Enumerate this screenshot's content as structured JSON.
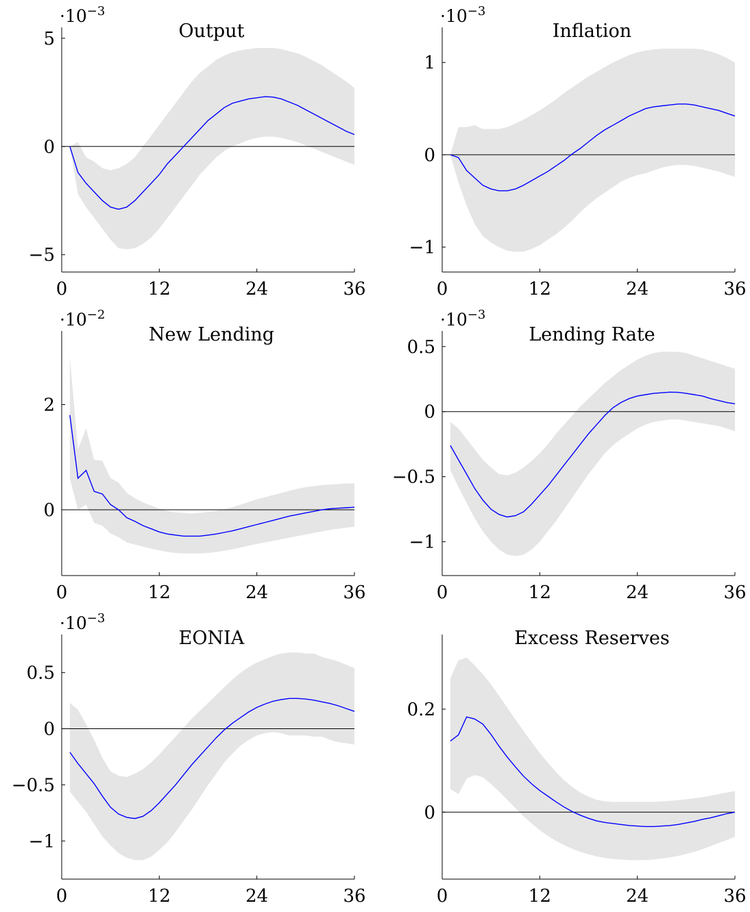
{
  "figure": {
    "panel_order": [
      "output",
      "inflation",
      "new_lending",
      "lending_rate",
      "eonia",
      "excess_reserves"
    ]
  },
  "chart_data": [
    {
      "id": "output",
      "type": "line",
      "title": "Output",
      "scale_label": {
        "base": "·10",
        "exp": "−3"
      },
      "xlim": [
        0,
        36
      ],
      "ylim": [
        -5.8,
        5.5
      ],
      "x_ticks": [
        0,
        12,
        24,
        36
      ],
      "x_tick_labels": [
        "0",
        "12",
        "24",
        "36"
      ],
      "y_ticks": [
        -5,
        0,
        5
      ],
      "y_tick_labels": [
        "−5",
        "0",
        "5"
      ],
      "zero_line": true,
      "band_color": "#e5e5e5",
      "line_color": "#0000ff",
      "x": [
        1,
        2,
        3,
        4,
        5,
        6,
        7,
        8,
        9,
        10,
        11,
        12,
        13,
        14,
        15,
        16,
        17,
        18,
        19,
        20,
        21,
        22,
        23,
        24,
        25,
        26,
        27,
        28,
        29,
        30,
        31,
        32,
        33,
        34,
        35,
        36
      ],
      "median": [
        0,
        -1.2,
        -1.7,
        -2.1,
        -2.5,
        -2.8,
        -2.9,
        -2.8,
        -2.5,
        -2.1,
        -1.7,
        -1.3,
        -0.8,
        -0.4,
        0,
        0.4,
        0.8,
        1.2,
        1.5,
        1.8,
        2.0,
        2.1,
        2.2,
        2.25,
        2.3,
        2.28,
        2.2,
        2.05,
        1.9,
        1.7,
        1.5,
        1.3,
        1.1,
        0.9,
        0.7,
        0.55
      ],
      "upper": [
        0,
        0.2,
        -0.5,
        -0.7,
        -1.0,
        -1.1,
        -1.0,
        -0.8,
        -0.5,
        0,
        0.5,
        1.0,
        1.5,
        2.0,
        2.5,
        3.0,
        3.4,
        3.7,
        4.0,
        4.2,
        4.35,
        4.45,
        4.5,
        4.55,
        4.55,
        4.55,
        4.5,
        4.4,
        4.3,
        4.15,
        3.95,
        3.75,
        3.5,
        3.25,
        3.0,
        2.7
      ],
      "lower": [
        0,
        -2.2,
        -2.8,
        -3.3,
        -3.8,
        -4.3,
        -4.7,
        -4.75,
        -4.7,
        -4.5,
        -4.2,
        -3.8,
        -3.3,
        -2.8,
        -2.3,
        -1.8,
        -1.3,
        -0.9,
        -0.5,
        -0.2,
        0,
        0.15,
        0.3,
        0.4,
        0.45,
        0.45,
        0.4,
        0.3,
        0.2,
        0.05,
        -0.1,
        -0.25,
        -0.4,
        -0.55,
        -0.7,
        -0.85
      ]
    },
    {
      "id": "inflation",
      "type": "line",
      "title": "Inflation",
      "scale_label": {
        "base": "·10",
        "exp": "−3"
      },
      "xlim": [
        0,
        36
      ],
      "ylim": [
        -1.27,
        1.38
      ],
      "x_ticks": [
        0,
        12,
        24,
        36
      ],
      "x_tick_labels": [
        "0",
        "12",
        "24",
        "36"
      ],
      "y_ticks": [
        -1,
        0,
        1
      ],
      "y_tick_labels": [
        "−1",
        "0",
        "1"
      ],
      "zero_line": true,
      "band_color": "#e5e5e5",
      "line_color": "#0000ff",
      "x": [
        1,
        2,
        3,
        4,
        5,
        6,
        7,
        8,
        9,
        10,
        11,
        12,
        13,
        14,
        15,
        16,
        17,
        18,
        19,
        20,
        21,
        22,
        23,
        24,
        25,
        26,
        27,
        28,
        29,
        30,
        31,
        32,
        33,
        34,
        35,
        36
      ],
      "median": [
        0,
        -0.03,
        -0.17,
        -0.25,
        -0.33,
        -0.37,
        -0.39,
        -0.39,
        -0.37,
        -0.33,
        -0.28,
        -0.23,
        -0.18,
        -0.12,
        -0.06,
        0.01,
        0.07,
        0.14,
        0.21,
        0.27,
        0.32,
        0.37,
        0.42,
        0.46,
        0.5,
        0.52,
        0.53,
        0.54,
        0.55,
        0.55,
        0.54,
        0.52,
        0.5,
        0.48,
        0.45,
        0.42
      ],
      "upper": [
        0,
        0.3,
        0.3,
        0.32,
        0.28,
        0.28,
        0.28,
        0.3,
        0.34,
        0.38,
        0.43,
        0.48,
        0.54,
        0.6,
        0.67,
        0.73,
        0.79,
        0.85,
        0.9,
        0.95,
        1.0,
        1.04,
        1.08,
        1.11,
        1.13,
        1.14,
        1.15,
        1.15,
        1.15,
        1.15,
        1.15,
        1.14,
        1.12,
        1.09,
        1.05,
        1.0
      ],
      "lower": [
        0,
        -0.3,
        -0.55,
        -0.75,
        -0.88,
        -0.95,
        -1.0,
        -1.04,
        -1.05,
        -1.05,
        -1.02,
        -0.98,
        -0.92,
        -0.86,
        -0.79,
        -0.71,
        -0.62,
        -0.54,
        -0.47,
        -0.41,
        -0.35,
        -0.29,
        -0.25,
        -0.22,
        -0.2,
        -0.17,
        -0.14,
        -0.12,
        -0.11,
        -0.11,
        -0.12,
        -0.14,
        -0.16,
        -0.18,
        -0.21,
        -0.24
      ]
    },
    {
      "id": "new_lending",
      "type": "line",
      "title": "New Lending",
      "scale_label": {
        "base": "·10",
        "exp": "−2"
      },
      "xlim": [
        0,
        36
      ],
      "ylim": [
        -1.25,
        3.4
      ],
      "x_ticks": [
        0,
        12,
        24,
        36
      ],
      "x_tick_labels": [
        "0",
        "12",
        "24",
        "36"
      ],
      "y_ticks": [
        0,
        2
      ],
      "y_tick_labels": [
        "0",
        "2"
      ],
      "zero_line": true,
      "band_color": "#e5e5e5",
      "line_color": "#0000ff",
      "x": [
        1,
        2,
        3,
        4,
        5,
        6,
        7,
        8,
        9,
        10,
        11,
        12,
        13,
        14,
        15,
        16,
        17,
        18,
        19,
        20,
        21,
        22,
        23,
        24,
        25,
        26,
        27,
        28,
        29,
        30,
        31,
        32,
        33,
        34,
        35,
        36
      ],
      "median": [
        1.8,
        0.6,
        0.75,
        0.35,
        0.3,
        0.1,
        0.0,
        -0.15,
        -0.22,
        -0.3,
        -0.36,
        -0.42,
        -0.46,
        -0.48,
        -0.5,
        -0.5,
        -0.5,
        -0.48,
        -0.46,
        -0.43,
        -0.4,
        -0.36,
        -0.32,
        -0.28,
        -0.24,
        -0.2,
        -0.16,
        -0.12,
        -0.09,
        -0.06,
        -0.03,
        0.0,
        0.02,
        0.03,
        0.04,
        0.05
      ],
      "upper": [
        2.9,
        1.15,
        1.55,
        0.95,
        0.93,
        0.6,
        0.52,
        0.32,
        0.22,
        0.14,
        0.08,
        0.02,
        -0.02,
        -0.05,
        -0.06,
        -0.07,
        -0.06,
        -0.04,
        -0.02,
        0.01,
        0.05,
        0.1,
        0.15,
        0.2,
        0.24,
        0.28,
        0.32,
        0.36,
        0.4,
        0.43,
        0.45,
        0.47,
        0.48,
        0.49,
        0.5,
        0.5
      ],
      "lower": [
        0.6,
        0.0,
        0.1,
        -0.25,
        -0.3,
        -0.45,
        -0.52,
        -0.62,
        -0.66,
        -0.7,
        -0.74,
        -0.77,
        -0.8,
        -0.82,
        -0.83,
        -0.83,
        -0.83,
        -0.82,
        -0.8,
        -0.78,
        -0.75,
        -0.72,
        -0.68,
        -0.65,
        -0.62,
        -0.59,
        -0.56,
        -0.53,
        -0.5,
        -0.47,
        -0.44,
        -0.41,
        -0.38,
        -0.36,
        -0.34,
        -0.32
      ]
    },
    {
      "id": "lending_rate",
      "type": "line",
      "title": "Lending Rate",
      "scale_label": {
        "base": "·10",
        "exp": "−3"
      },
      "xlim": [
        0,
        36
      ],
      "ylim": [
        -1.26,
        0.62
      ],
      "x_ticks": [
        0,
        12,
        24,
        36
      ],
      "x_tick_labels": [
        "0",
        "12",
        "24",
        "36"
      ],
      "y_ticks": [
        -1,
        -0.5,
        0,
        0.5
      ],
      "y_tick_labels": [
        "−1",
        "−0.5",
        "0",
        "0.5"
      ],
      "zero_line": true,
      "band_color": "#e5e5e5",
      "line_color": "#0000ff",
      "x": [
        1,
        2,
        3,
        4,
        5,
        6,
        7,
        8,
        9,
        10,
        11,
        12,
        13,
        14,
        15,
        16,
        17,
        18,
        19,
        20,
        21,
        22,
        23,
        24,
        25,
        26,
        27,
        28,
        29,
        30,
        31,
        32,
        33,
        34,
        35,
        36
      ],
      "median": [
        -0.26,
        -0.37,
        -0.48,
        -0.59,
        -0.68,
        -0.75,
        -0.79,
        -0.81,
        -0.8,
        -0.77,
        -0.71,
        -0.64,
        -0.57,
        -0.49,
        -0.41,
        -0.33,
        -0.25,
        -0.17,
        -0.1,
        -0.03,
        0.03,
        0.07,
        0.1,
        0.12,
        0.13,
        0.14,
        0.145,
        0.15,
        0.148,
        0.14,
        0.13,
        0.12,
        0.1,
        0.085,
        0.07,
        0.06
      ],
      "upper": [
        -0.08,
        -0.13,
        -0.21,
        -0.29,
        -0.37,
        -0.43,
        -0.48,
        -0.49,
        -0.47,
        -0.43,
        -0.38,
        -0.32,
        -0.25,
        -0.17,
        -0.1,
        -0.03,
        0.04,
        0.1,
        0.16,
        0.22,
        0.27,
        0.32,
        0.36,
        0.4,
        0.43,
        0.45,
        0.46,
        0.46,
        0.46,
        0.45,
        0.43,
        0.41,
        0.39,
        0.37,
        0.35,
        0.33
      ],
      "lower": [
        -0.45,
        -0.58,
        -0.7,
        -0.82,
        -0.92,
        -1.0,
        -1.06,
        -1.1,
        -1.11,
        -1.1,
        -1.06,
        -1.0,
        -0.92,
        -0.84,
        -0.75,
        -0.66,
        -0.57,
        -0.48,
        -0.4,
        -0.32,
        -0.26,
        -0.21,
        -0.17,
        -0.13,
        -0.1,
        -0.08,
        -0.07,
        -0.06,
        -0.06,
        -0.07,
        -0.08,
        -0.09,
        -0.1,
        -0.11,
        -0.13,
        -0.15
      ]
    },
    {
      "id": "eonia",
      "type": "line",
      "title": "EONIA",
      "scale_label": {
        "base": "·10",
        "exp": "−3"
      },
      "xlim": [
        0,
        36
      ],
      "ylim": [
        -1.34,
        0.84
      ],
      "x_ticks": [
        0,
        12,
        24,
        36
      ],
      "x_tick_labels": [
        "0",
        "12",
        "24",
        "36"
      ],
      "y_ticks": [
        -1,
        -0.5,
        0,
        0.5
      ],
      "y_tick_labels": [
        "−1",
        "−0.5",
        "0",
        "0.5"
      ],
      "zero_line": true,
      "band_color": "#e5e5e5",
      "line_color": "#0000ff",
      "x": [
        1,
        2,
        3,
        4,
        5,
        6,
        7,
        8,
        9,
        10,
        11,
        12,
        13,
        14,
        15,
        16,
        17,
        18,
        19,
        20,
        21,
        22,
        23,
        24,
        25,
        26,
        27,
        28,
        29,
        30,
        31,
        32,
        33,
        34,
        35,
        36
      ],
      "median": [
        -0.21,
        -0.31,
        -0.4,
        -0.49,
        -0.6,
        -0.7,
        -0.76,
        -0.79,
        -0.8,
        -0.78,
        -0.73,
        -0.66,
        -0.58,
        -0.5,
        -0.41,
        -0.32,
        -0.24,
        -0.16,
        -0.08,
        -0.01,
        0.05,
        0.1,
        0.15,
        0.19,
        0.22,
        0.245,
        0.26,
        0.27,
        0.27,
        0.265,
        0.255,
        0.24,
        0.225,
        0.205,
        0.18,
        0.155
      ],
      "upper": [
        0.23,
        0.17,
        0.04,
        -0.1,
        -0.26,
        -0.38,
        -0.42,
        -0.43,
        -0.4,
        -0.36,
        -0.3,
        -0.23,
        -0.15,
        -0.07,
        0.01,
        0.09,
        0.16,
        0.23,
        0.3,
        0.37,
        0.44,
        0.5,
        0.55,
        0.59,
        0.62,
        0.65,
        0.67,
        0.68,
        0.68,
        0.67,
        0.67,
        0.64,
        0.62,
        0.6,
        0.57,
        0.54
      ],
      "lower": [
        -0.56,
        -0.65,
        -0.74,
        -0.85,
        -0.96,
        -1.04,
        -1.11,
        -1.15,
        -1.17,
        -1.17,
        -1.14,
        -1.08,
        -1.01,
        -0.92,
        -0.82,
        -0.72,
        -0.61,
        -0.5,
        -0.4,
        -0.3,
        -0.22,
        -0.15,
        -0.1,
        -0.06,
        -0.04,
        -0.03,
        -0.04,
        -0.06,
        -0.06,
        -0.06,
        -0.07,
        -0.07,
        -0.1,
        -0.12,
        -0.13,
        -0.14
      ]
    },
    {
      "id": "excess_reserves",
      "type": "line",
      "title": "Excess Reserves",
      "scale_label": {
        "base": "",
        "exp": ""
      },
      "xlim": [
        0,
        36
      ],
      "ylim": [
        -0.13,
        0.345
      ],
      "x_ticks": [
        0,
        12,
        24,
        36
      ],
      "x_tick_labels": [
        "0",
        "12",
        "24",
        "36"
      ],
      "y_ticks": [
        0,
        0.2
      ],
      "y_tick_labels": [
        "0",
        "0.2"
      ],
      "zero_line": true,
      "band_color": "#e5e5e5",
      "line_color": "#0000ff",
      "x": [
        1,
        2,
        3,
        4,
        5,
        6,
        7,
        8,
        9,
        10,
        11,
        12,
        13,
        14,
        15,
        16,
        17,
        18,
        19,
        20,
        21,
        22,
        23,
        24,
        25,
        26,
        27,
        28,
        29,
        30,
        31,
        32,
        33,
        34,
        35,
        36
      ],
      "median": [
        0.138,
        0.15,
        0.185,
        0.181,
        0.171,
        0.151,
        0.128,
        0.107,
        0.088,
        0.07,
        0.055,
        0.042,
        0.031,
        0.02,
        0.01,
        0.001,
        -0.006,
        -0.012,
        -0.017,
        -0.02,
        -0.022,
        -0.024,
        -0.026,
        -0.027,
        -0.028,
        -0.028,
        -0.027,
        -0.026,
        -0.024,
        -0.021,
        -0.018,
        -0.014,
        -0.011,
        -0.007,
        -0.003,
        0.0
      ],
      "upper": [
        0.26,
        0.295,
        0.3,
        0.285,
        0.268,
        0.248,
        0.226,
        0.203,
        0.18,
        0.158,
        0.136,
        0.115,
        0.096,
        0.078,
        0.062,
        0.049,
        0.038,
        0.03,
        0.024,
        0.021,
        0.02,
        0.02,
        0.02,
        0.02,
        0.02,
        0.02,
        0.021,
        0.022,
        0.023,
        0.025,
        0.027,
        0.029,
        0.032,
        0.035,
        0.038,
        0.041
      ],
      "lower": [
        0.045,
        0.035,
        0.065,
        0.072,
        0.068,
        0.055,
        0.04,
        0.024,
        0.008,
        -0.008,
        -0.022,
        -0.035,
        -0.046,
        -0.056,
        -0.064,
        -0.071,
        -0.077,
        -0.082,
        -0.086,
        -0.089,
        -0.091,
        -0.092,
        -0.093,
        -0.093,
        -0.093,
        -0.092,
        -0.09,
        -0.088,
        -0.085,
        -0.081,
        -0.077,
        -0.072,
        -0.066,
        -0.06,
        -0.054,
        -0.048
      ]
    }
  ]
}
